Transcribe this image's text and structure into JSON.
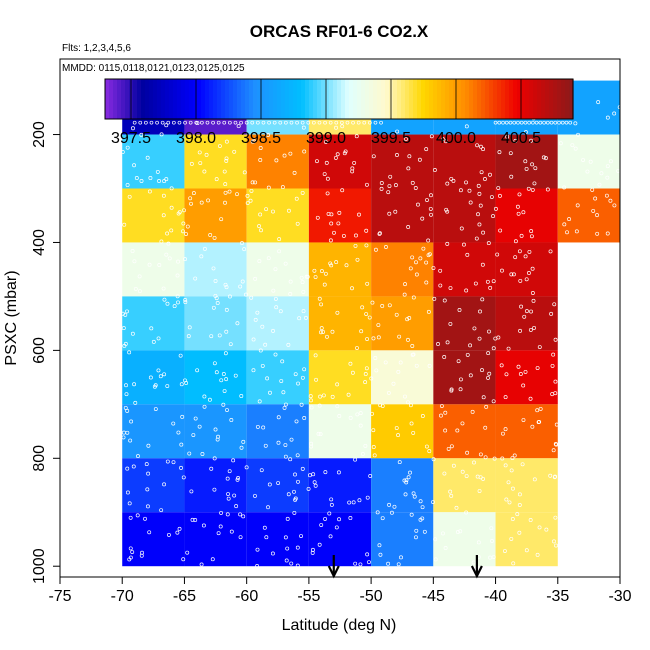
{
  "chart_data": {
    "type": "heatmap",
    "title": "ORCAS RF01-6 CO2.X",
    "subtitle_flights": "Flts: 1,2,3,4,5,6",
    "subtitle_dates": "MMDD: 0115,0118,0121,0123,0125,0125",
    "xlabel": "Latitude (deg N)",
    "ylabel": "PSXC (mbar)",
    "xlim": [
      -75,
      -30
    ],
    "ylim_reversed": [
      1020,
      60
    ],
    "x_ticks": [
      -75,
      -70,
      -65,
      -60,
      -55,
      -50,
      -45,
      -40,
      -35,
      -30
    ],
    "x_tick_labels": [
      "-75",
      "-70",
      "-65",
      "-60",
      "-55",
      "-50",
      "-45",
      "-40",
      "-35",
      "-30"
    ],
    "y_ticks": [
      200,
      400,
      600,
      800,
      1000
    ],
    "y_tick_labels": [
      "200",
      "400",
      "600",
      "800",
      "1000"
    ],
    "colorbar": {
      "min": 397.3,
      "max": 400.9,
      "ticks": [
        397.5,
        398.0,
        398.5,
        399.0,
        399.5,
        400.0,
        400.5
      ],
      "tick_labels": [
        "397.5",
        "398.0",
        "398.5",
        "399.0",
        "399.5",
        "400.0",
        "400.5"
      ]
    },
    "lat_bins": [
      -70,
      -65,
      -60,
      -55,
      -50,
      -45,
      -40,
      -35
    ],
    "pressure_bins": [
      100,
      200,
      300,
      400,
      500,
      600,
      700,
      800,
      900,
      1000
    ],
    "cells": [
      [
        397.7,
        397.4,
        399.0,
        399.6,
        398.6,
        398.6,
        398.6,
        398.6
      ],
      [
        398.9,
        399.7,
        400.1,
        400.6,
        400.7,
        400.7,
        400.8,
        399.3
      ],
      [
        399.7,
        400.0,
        399.7,
        400.4,
        400.7,
        400.7,
        400.5,
        400.2
      ],
      [
        399.3,
        399.1,
        399.3,
        399.9,
        400.1,
        400.6,
        400.6,
        null
      ],
      [
        398.9,
        399.0,
        399.1,
        399.9,
        400.0,
        400.8,
        400.7,
        null
      ],
      [
        398.7,
        398.8,
        398.9,
        399.7,
        399.4,
        400.8,
        400.5,
        null
      ],
      [
        398.5,
        398.5,
        398.4,
        399.3,
        399.8,
        400.2,
        400.2,
        null
      ],
      [
        398.2,
        398.1,
        398.2,
        398.1,
        398.4,
        399.6,
        399.6,
        null
      ],
      [
        398.0,
        398.0,
        398.0,
        398.0,
        398.4,
        399.3,
        399.6,
        null
      ]
    ],
    "arrows": [
      {
        "lat": -53,
        "label": "arrow"
      },
      {
        "lat": -41.5,
        "label": "arrow"
      }
    ]
  }
}
